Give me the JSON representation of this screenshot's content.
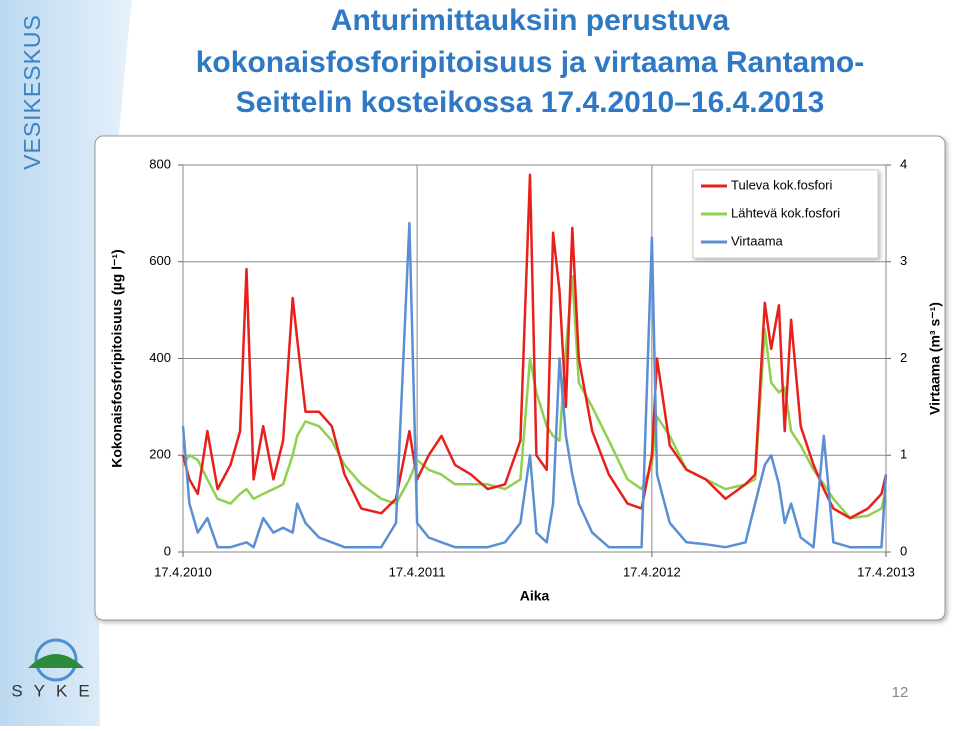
{
  "sidebar": {
    "label": "VESIKESKUS"
  },
  "logo": {
    "text": "SYKE"
  },
  "page_number": "12",
  "chart_data": {
    "type": "line",
    "title": [
      "Anturimittauksiin perustuva",
      "kokonaisfosforipitoisuus ja virtaama Rantamo-",
      "Seittelin kosteikossa 17.4.2010–16.4.2013"
    ],
    "xlabel": "Aika",
    "ylabel": "Kokonaisfosforipitoisuus (µg l⁻¹)",
    "y2label": "Virtaama (m³ s⁻¹)",
    "x": [
      "2010-04-17",
      "2010-04-27",
      "2010-05-10",
      "2010-05-25",
      "2010-06-10",
      "2010-06-30",
      "2010-07-15",
      "2010-07-25",
      "2010-08-05",
      "2010-08-20",
      "2010-09-05",
      "2010-09-20",
      "2010-10-05",
      "2010-10-12",
      "2010-10-25",
      "2010-11-15",
      "2010-12-05",
      "2010-12-25",
      "2011-01-20",
      "2011-02-20",
      "2011-03-15",
      "2011-04-05",
      "2011-04-17",
      "2011-05-05",
      "2011-05-25",
      "2011-06-15",
      "2011-07-10",
      "2011-08-05",
      "2011-09-01",
      "2011-09-25",
      "2011-10-10",
      "2011-10-20",
      "2011-11-05",
      "2011-11-15",
      "2011-11-25",
      "2011-12-05",
      "2011-12-15",
      "2011-12-25",
      "2012-01-15",
      "2012-02-10",
      "2012-03-10",
      "2012-04-01",
      "2012-04-17",
      "2012-04-25",
      "2012-05-15",
      "2012-06-10",
      "2012-07-10",
      "2012-08-10",
      "2012-09-10",
      "2012-09-25",
      "2012-10-10",
      "2012-10-20",
      "2012-11-01",
      "2012-11-10",
      "2012-11-20",
      "2012-12-05",
      "2012-12-25",
      "2013-01-10",
      "2013-01-25",
      "2013-02-20",
      "2013-03-20",
      "2013-04-10",
      "2013-04-17"
    ],
    "series": [
      {
        "name": "Tuleva kok.fosfori",
        "color": "#e8201c",
        "values": [
          200,
          150,
          120,
          250,
          130,
          180,
          250,
          585,
          150,
          260,
          150,
          230,
          525,
          440,
          290,
          290,
          260,
          160,
          90,
          80,
          110,
          250,
          150,
          200,
          240,
          180,
          160,
          130,
          140,
          230,
          780,
          200,
          170,
          660,
          540,
          300,
          670,
          400,
          250,
          160,
          100,
          90,
          200,
          400,
          220,
          170,
          150,
          110,
          140,
          160,
          515,
          420,
          510,
          250,
          480,
          260,
          180,
          130,
          90,
          70,
          90,
          120,
          160
        ]
      },
      {
        "name": "Lähtevä kok.fosfori",
        "color": "#8fd14f",
        "values": [
          180,
          200,
          190,
          150,
          110,
          100,
          120,
          130,
          110,
          120,
          130,
          140,
          200,
          240,
          270,
          260,
          230,
          180,
          140,
          110,
          100,
          150,
          190,
          170,
          160,
          140,
          140,
          140,
          130,
          150,
          400,
          330,
          260,
          240,
          230,
          420,
          570,
          350,
          300,
          230,
          150,
          130,
          180,
          280,
          240,
          170,
          150,
          130,
          140,
          150,
          460,
          350,
          330,
          340,
          250,
          220,
          170,
          140,
          110,
          70,
          75,
          90,
          130
        ]
      },
      {
        "name": "Virtaama",
        "color": "#5b8fd4",
        "axis": "y2",
        "values": [
          1.3,
          0.5,
          0.2,
          0.35,
          0.05,
          0.05,
          0.08,
          0.1,
          0.05,
          0.35,
          0.2,
          0.25,
          0.2,
          0.5,
          0.3,
          0.15,
          0.1,
          0.05,
          0.05,
          0.05,
          0.3,
          3.4,
          0.3,
          0.15,
          0.1,
          0.05,
          0.05,
          0.05,
          0.1,
          0.3,
          1.0,
          0.2,
          0.1,
          0.5,
          2.0,
          1.2,
          0.8,
          0.5,
          0.2,
          0.05,
          0.05,
          0.05,
          3.25,
          0.8,
          0.3,
          0.1,
          0.08,
          0.05,
          0.1,
          0.5,
          0.9,
          1.0,
          0.7,
          0.3,
          0.5,
          0.15,
          0.05,
          1.2,
          0.1,
          0.05,
          0.05,
          0.05,
          0.8
        ]
      }
    ],
    "xlim": [
      "2010-04-17",
      "2013-04-17"
    ],
    "xticks": [
      {
        "value": "2010-04-17",
        "label": "17.4.2010"
      },
      {
        "value": "2011-04-17",
        "label": "17.4.2011"
      },
      {
        "value": "2012-04-17",
        "label": "17.4.2012"
      },
      {
        "value": "2013-04-17",
        "label": "17.4.2013"
      }
    ],
    "ylim": [
      0,
      800
    ],
    "yticks": [
      0,
      200,
      400,
      600,
      800
    ],
    "y2lim": [
      0,
      4
    ],
    "y2ticks": [
      0,
      1,
      2,
      3,
      4
    ],
    "grid": true,
    "legend": "upper right"
  }
}
